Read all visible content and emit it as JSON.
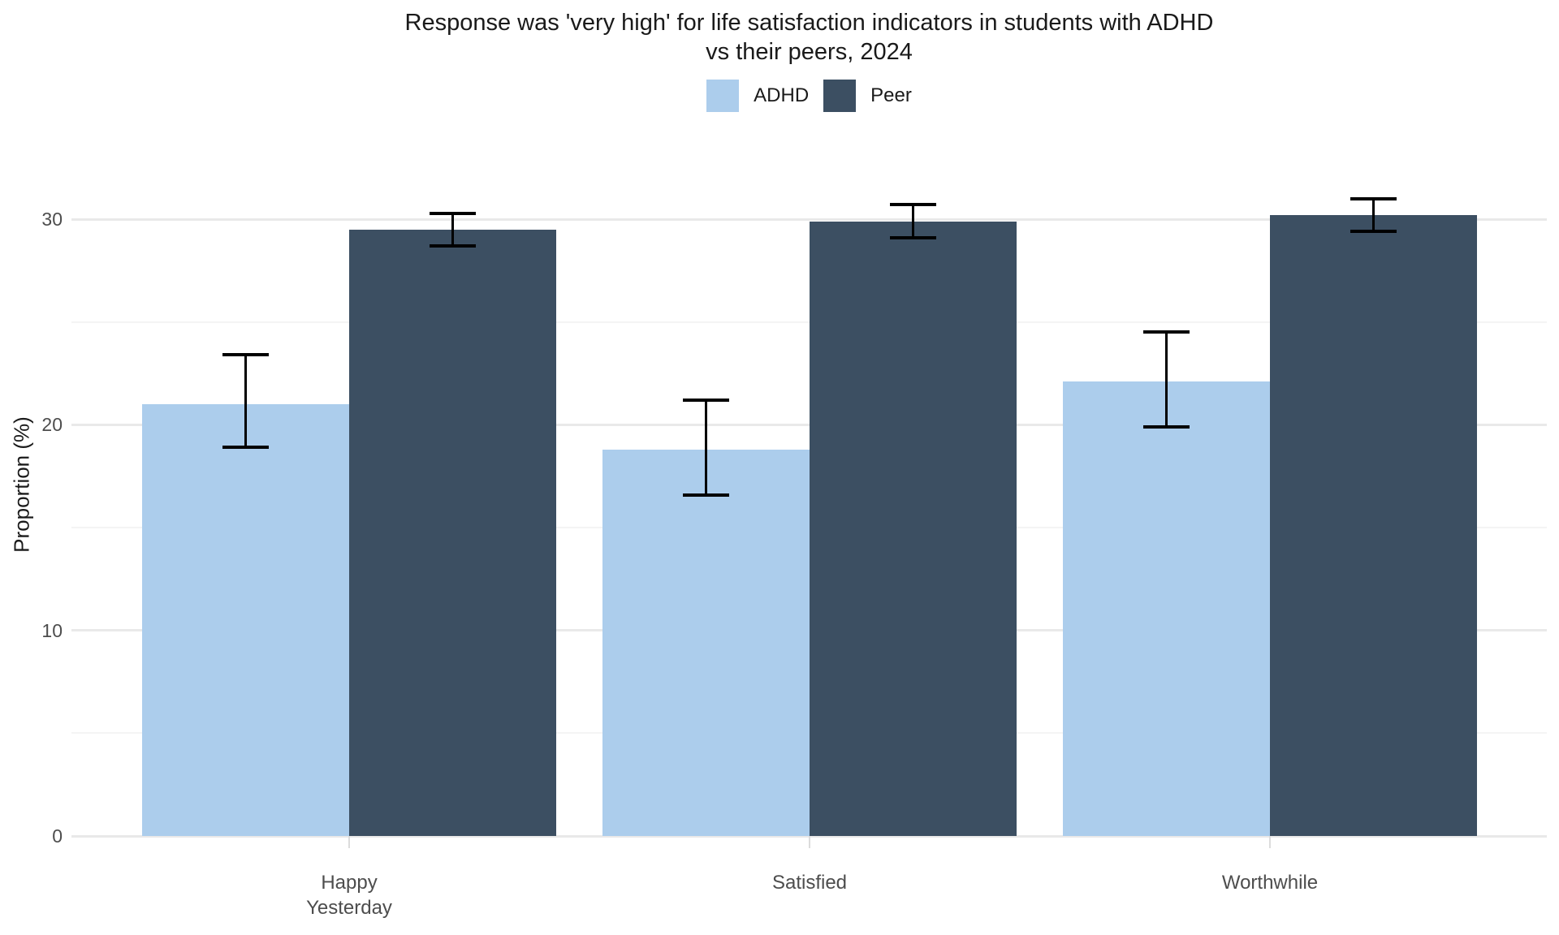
{
  "title": {
    "line1": "Response was 'very high' for life satisfaction indicators in students with ADHD",
    "line2": "vs their peers, 2024"
  },
  "y_axis": {
    "label": "Proportion (%)",
    "tick_labels": [
      "0",
      "10",
      "20",
      "30"
    ]
  },
  "chart_data": {
    "type": "bar",
    "title": "Response was 'very high' for life satisfaction indicators in students with ADHD vs their peers, 2024",
    "xlabel": "",
    "ylabel": "Proportion (%)",
    "ylim": [
      0,
      34
    ],
    "grid": true,
    "legend_position": "top",
    "major_ticks": [
      0,
      10,
      20,
      30
    ],
    "minor_ticks": [
      5,
      15,
      25
    ],
    "categories": [
      "Happy Yesterday",
      "Satisfied",
      "Worthwhile"
    ],
    "categories_display": [
      "Happy\nYesterday",
      "Satisfied",
      "Worthwhile"
    ],
    "series": [
      {
        "name": "ADHD",
        "color": "#accdec",
        "values": [
          21.0,
          18.8,
          22.1
        ],
        "ci_low": [
          18.9,
          16.6,
          19.9
        ],
        "ci_high": [
          23.4,
          21.2,
          24.5
        ]
      },
      {
        "name": "Peer",
        "color": "#3c4f62",
        "values": [
          29.5,
          29.9,
          30.2
        ],
        "ci_low": [
          28.7,
          29.1,
          29.4
        ],
        "ci_high": [
          30.3,
          30.7,
          31.0
        ]
      }
    ],
    "error_bars": true,
    "background": "#ffffff"
  }
}
